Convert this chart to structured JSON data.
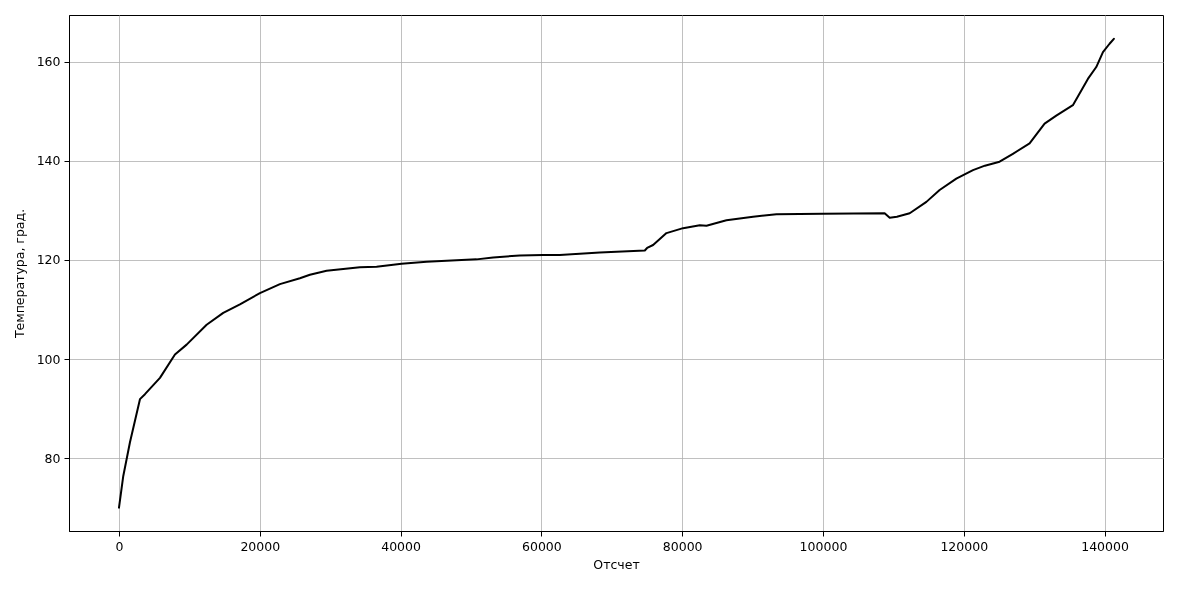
{
  "chart_data": {
    "type": "line",
    "xlabel": "Отсчет",
    "ylabel": "Температура, град.",
    "x": [
      0,
      610,
      1560,
      2980,
      3690,
      5820,
      7950,
      9610,
      12450,
      14810,
      17180,
      20020,
      22860,
      25700,
      27120,
      29490,
      34220,
      36590,
      40140,
      43690,
      50790,
      53150,
      56940,
      60250,
      62620,
      68300,
      74690,
      75020,
      75870,
      77770,
      80130,
      82500,
      83450,
      86290,
      90070,
      93390,
      100010,
      108760,
      109480,
      110500,
      112320,
      114690,
      116570,
      118940,
      121310,
      123000,
      125090,
      126980,
      129350,
      131480,
      133140,
      135500,
      137630,
      138820,
      139770,
      140710,
      141320
    ],
    "series": [
      {
        "color": "#000000",
        "values": [
          70.0,
          76.4,
          83.2,
          91.9,
          92.9,
          96.2,
          100.9,
          102.9,
          106.9,
          109.3,
          111.0,
          113.3,
          115.1,
          116.3,
          117.0,
          117.8,
          118.5,
          118.6,
          119.2,
          119.6,
          120.1,
          120.5,
          120.9,
          121.0,
          121.0,
          121.5,
          121.9,
          122.4,
          123.0,
          125.4,
          126.4,
          127.0,
          126.9,
          128.0,
          128.7,
          129.2,
          129.3,
          129.4,
          128.5,
          128.7,
          129.4,
          131.7,
          134.1,
          136.4,
          138.1,
          139.0,
          139.8,
          141.4,
          143.5,
          147.5,
          149.1,
          151.2,
          156.5,
          158.9,
          161.9,
          163.6,
          164.6
        ]
      }
    ],
    "xlim": [
      -7100,
      148300
    ],
    "ylim": [
      65.3,
      169.4
    ],
    "xticks": [
      0,
      20000,
      40000,
      60000,
      80000,
      100000,
      120000,
      140000
    ],
    "yticks": [
      80,
      100,
      120,
      140,
      160
    ],
    "grid": true,
    "line_style": "solid"
  }
}
